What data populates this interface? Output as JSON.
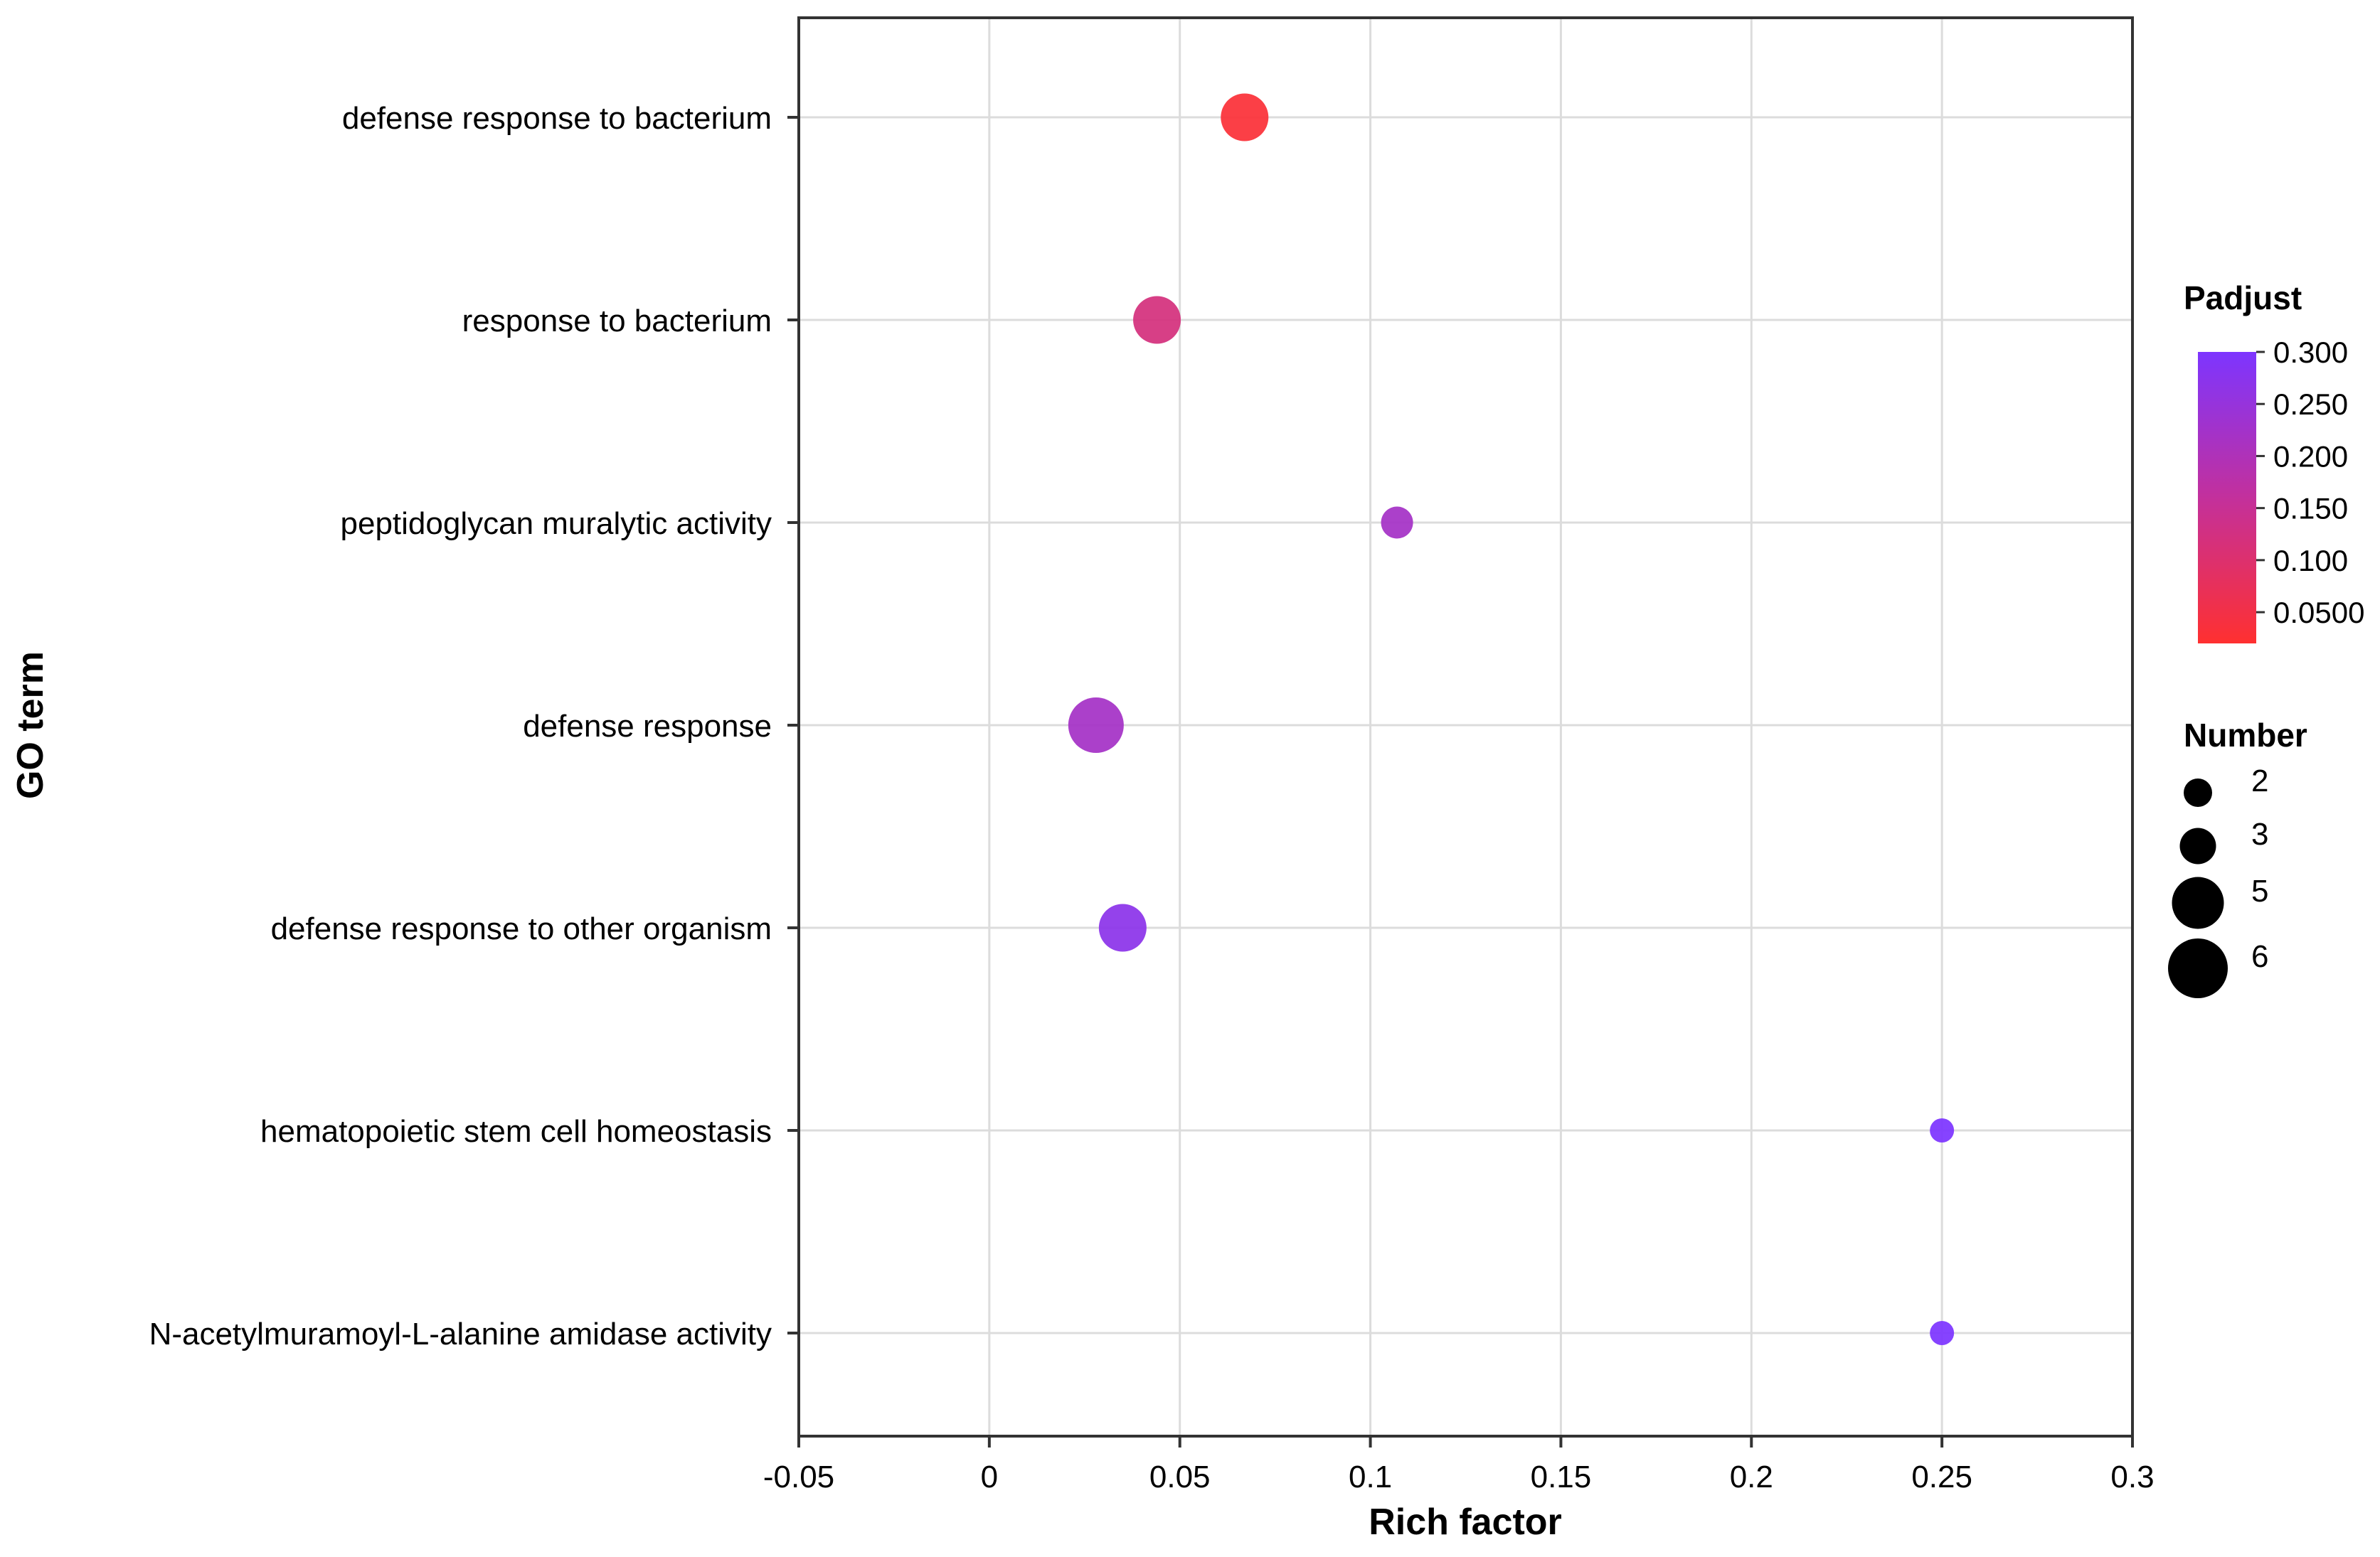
{
  "chart_data": {
    "type": "scatter",
    "title": "",
    "xlabel": "Rich factor",
    "ylabel": "GO term",
    "xlim": [
      -0.05,
      0.3
    ],
    "x_ticks": [
      -0.05,
      0,
      0.05,
      0.1,
      0.15,
      0.2,
      0.25,
      0.3
    ],
    "x_tick_labels": [
      "-0.05",
      "0",
      "0.05",
      "0.1",
      "0.15",
      "0.2",
      "0.25",
      "0.3"
    ],
    "grid": true,
    "categories": [
      "defense response to bacterium",
      "response to bacterium",
      "peptidoglycan muralytic activity",
      "defense response",
      "defense response to other organism",
      "hematopoietic stem cell homeostasis",
      "N-acetylmuramoyl-L-alanine amidase activity"
    ],
    "points": [
      {
        "term": "defense response to bacterium",
        "rich_factor": 0.067,
        "number": 5,
        "padjust": 0.03
      },
      {
        "term": "response to bacterium",
        "rich_factor": 0.044,
        "number": 5,
        "padjust": 0.12
      },
      {
        "term": "peptidoglycan muralytic activity",
        "rich_factor": 0.107,
        "number": 3,
        "padjust": 0.22
      },
      {
        "term": "defense response",
        "rich_factor": 0.028,
        "number": 6,
        "padjust": 0.22
      },
      {
        "term": "defense response to other organism",
        "rich_factor": 0.035,
        "number": 5,
        "padjust": 0.27
      },
      {
        "term": "hematopoietic stem cell homeostasis",
        "rich_factor": 0.25,
        "number": 2,
        "padjust": 0.3
      },
      {
        "term": "N-acetylmuramoyl-L-alanine amidase activity",
        "rich_factor": 0.25,
        "number": 2,
        "padjust": 0.3
      }
    ],
    "color_legend": {
      "title": "Padjust",
      "min": 0.02,
      "max": 0.3,
      "ticks": [
        0.3,
        0.25,
        0.2,
        0.15,
        0.1,
        0.05
      ],
      "tick_labels": [
        "0.300",
        "0.250",
        "0.200",
        "0.150",
        "0.100",
        "0.0500"
      ],
      "color_low": "#ff3030",
      "color_mid": "#c3309c",
      "color_high": "#7d35ff"
    },
    "size_legend": {
      "title": "Number",
      "values": [
        2,
        3,
        5,
        6
      ],
      "labels": [
        "2",
        "3",
        "5",
        "6"
      ]
    }
  }
}
